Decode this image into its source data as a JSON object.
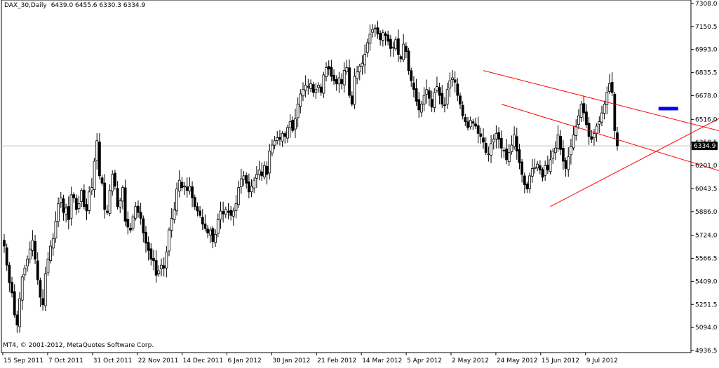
{
  "header": {
    "symbol": "DAX_30,Daily",
    "ohlc": "6439.0 6455.6 6330.3 6334.9"
  },
  "copyright": "MT4, © 2001-2012, MetaQuotes Software Corp.",
  "current_price_label": "6334.9",
  "colors": {
    "background": "#ffffff",
    "axis": "#000000",
    "candle_body": "#000000",
    "wick": "#000000",
    "trendline": "#ff0000",
    "current_price_line": "#c0c0c0",
    "target_marker": "#0000ff"
  },
  "chart_data": {
    "type": "candlestick",
    "symbol": "DAX_30",
    "timeframe": "Daily",
    "ylim": [
      4936.5,
      7308.0
    ],
    "yticks": [
      7308.0,
      7150.5,
      6993.0,
      6835.5,
      6678.0,
      6516.0,
      6358.5,
      6201.0,
      6043.5,
      5886.0,
      5724.0,
      5566.5,
      5409.0,
      5251.5,
      5094.0,
      4936.5
    ],
    "xticks": [
      "15 Sep 2011",
      "7 Oct 2011",
      "31 Oct 2011",
      "22 Nov 2011",
      "14 Dec 2011",
      "6 Jan 2012",
      "30 Jan 2012",
      "21 Feb 2012",
      "14 Mar 2012",
      "5 Apr 2012",
      "2 May 2012",
      "24 May 2012",
      "15 Jun 2012",
      "9 Jul 2012"
    ],
    "closes": [
      5650,
      5520,
      5400,
      5330,
      5180,
      5110,
      5290,
      5440,
      5500,
      5560,
      5630,
      5690,
      5560,
      5420,
      5300,
      5250,
      5460,
      5560,
      5650,
      5700,
      5820,
      5940,
      5980,
      5880,
      5910,
      5830,
      6000,
      5980,
      5900,
      5940,
      6030,
      5920,
      5890,
      6020,
      6050,
      6230,
      6370,
      6130,
      6080,
      5900,
      5880,
      6030,
      6140,
      6060,
      5920,
      5960,
      6050,
      5820,
      5780,
      5760,
      5850,
      5920,
      5880,
      5840,
      5740,
      5670,
      5620,
      5560,
      5550,
      5450,
      5480,
      5520,
      5500,
      5610,
      5760,
      5840,
      5900,
      6040,
      6100,
      6050,
      6060,
      6030,
      6060,
      5980,
      5920,
      5890,
      5860,
      5800,
      5770,
      5740,
      5760,
      5680,
      5730,
      5830,
      5890,
      5870,
      5900,
      5880,
      5860,
      5890,
      5940,
      6050,
      6110,
      6130,
      6080,
      6020,
      6060,
      6100,
      6140,
      6170,
      6130,
      6200,
      6140,
      6300,
      6340,
      6370,
      6390,
      6380,
      6420,
      6400,
      6460,
      6500,
      6440,
      6520,
      6620,
      6690,
      6720,
      6750,
      6740,
      6760,
      6700,
      6720,
      6750,
      6700,
      6820,
      6870,
      6860,
      6810,
      6780,
      6760,
      6800,
      6760,
      6850,
      6870,
      6680,
      6620,
      6810,
      6840,
      6880,
      6900,
      6960,
      7040,
      7100,
      7130,
      7140,
      7100,
      7060,
      7110,
      7090,
      7050,
      7000,
      7010,
      7060,
      6960,
      6930,
      7030,
      6980,
      6850,
      6780,
      6720,
      6640,
      6580,
      6620,
      6680,
      6720,
      6660,
      6600,
      6700,
      6740,
      6680,
      6620,
      6610,
      6720,
      6780,
      6800,
      6770,
      6680,
      6620,
      6540,
      6500,
      6460,
      6510,
      6490,
      6470,
      6420,
      6400,
      6360,
      6290,
      6280,
      6350,
      6380,
      6420,
      6380,
      6320,
      6300,
      6240,
      6290,
      6340,
      6410,
      6300,
      6220,
      6140,
      6070,
      6040,
      6130,
      6180,
      6190,
      6210,
      6170,
      6120,
      6200,
      6170,
      6240,
      6300,
      6320,
      6410,
      6310,
      6230,
      6180,
      6260,
      6330,
      6410,
      6470,
      6540,
      6620,
      6560,
      6480,
      6400,
      6380,
      6420,
      6470,
      6500,
      6560,
      6620,
      6700,
      6760,
      6700,
      6439,
      6334.9
    ],
    "annotations": [
      "6334.9"
    ]
  }
}
